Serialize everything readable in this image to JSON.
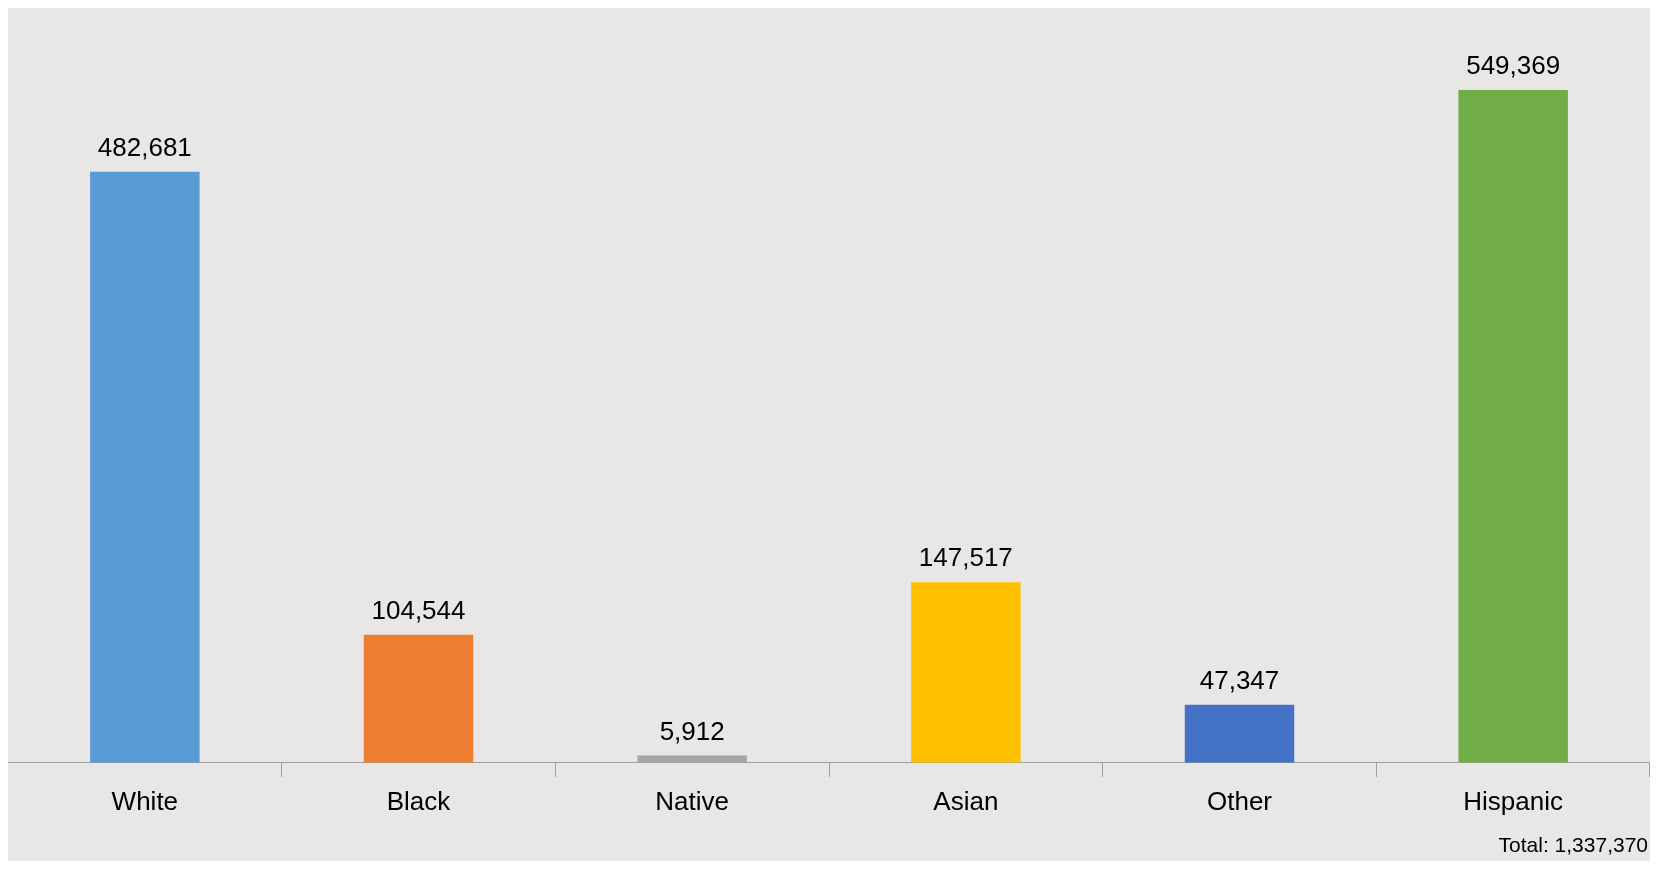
{
  "chart_data": {
    "type": "bar",
    "categories": [
      "White",
      "Black",
      "Native",
      "Asian",
      "Other",
      "Hispanic"
    ],
    "values": [
      482681,
      104544,
      5912,
      147517,
      47347,
      549369
    ],
    "colors": [
      "#5b9bd5",
      "#ed7d31",
      "#a5a5a5",
      "#ffc000",
      "#4472c4",
      "#70ad47"
    ],
    "value_labels": [
      "482,681",
      "104,544",
      "5,912",
      "147,517",
      "47,347",
      "549,369"
    ],
    "grid": false,
    "legend": false,
    "annotations": [
      "Total: 1,337,370"
    ]
  }
}
